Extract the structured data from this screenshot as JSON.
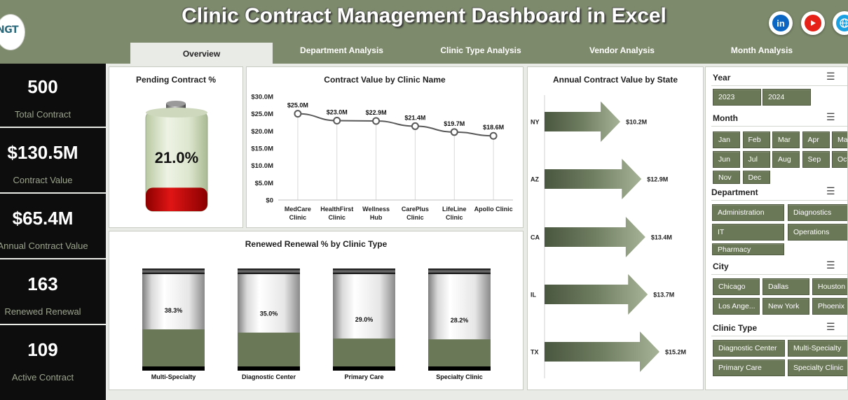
{
  "header": {
    "title": "Clinic Contract Management Dashboard in Excel",
    "logo_text": "NGT",
    "social_icons": [
      "linkedin-icon",
      "youtube-icon",
      "globe-icon"
    ]
  },
  "tabs": [
    {
      "label": "Overview",
      "active": true
    },
    {
      "label": "Department Analysis"
    },
    {
      "label": "Clinic Type Analysis"
    },
    {
      "label": "Vendor Analysis"
    },
    {
      "label": "Month Analysis"
    }
  ],
  "kpis": [
    {
      "value": "500",
      "label": "Total Contract"
    },
    {
      "value": "$130.5M",
      "label": "Contract Value"
    },
    {
      "value": "$65.4M",
      "label": "Annual Contract Value"
    },
    {
      "value": "163",
      "label": "Renewed Renewal"
    },
    {
      "value": "109",
      "label": "Active Contract"
    }
  ],
  "pending": {
    "title": "Pending Contract %",
    "value_label": "21.0%",
    "fraction": 0.21
  },
  "colors": {
    "header_bg": "#7d8a6b",
    "accent_green": "#6b7858",
    "battery_fill": "#c00000",
    "kpi_bg": "#0d0d0d",
    "kpi_label": "#9ba48d"
  },
  "chart_data": [
    {
      "type": "line",
      "title": "Contract Value by Clinic Name",
      "categories": [
        "MedCare Clinic",
        "HealthFirst Clinic",
        "Wellness Hub",
        "CarePlus Clinic",
        "LifeLine Clinic",
        "Apollo Clinic"
      ],
      "values": [
        25.0,
        23.0,
        22.9,
        21.4,
        19.7,
        18.6
      ],
      "data_labels": [
        "$25.0M",
        "$23.0M",
        "$22.9M",
        "$21.4M",
        "$19.7M",
        "$18.6M"
      ],
      "yticks": [
        "$0",
        "$5.0M",
        "$10.0M",
        "$15.0M",
        "$20.0M",
        "$25.0M",
        "$30.0M"
      ],
      "ylim": [
        0,
        30
      ]
    },
    {
      "type": "bar",
      "title": "Renewed Renewal % by Clinic Type",
      "categories": [
        "Multi-Specialty",
        "Diagnostic Center",
        "Primary Care",
        "Specialty Clinic"
      ],
      "values": [
        38.3,
        35.0,
        29.0,
        28.2
      ],
      "data_labels": [
        "38.3%",
        "35.0%",
        "29.0%",
        "28.2%"
      ],
      "ylim": [
        0,
        100
      ]
    },
    {
      "type": "bar",
      "title": "Annual Contract Value by State",
      "categories": [
        "NY",
        "AZ",
        "CA",
        "IL",
        "TX"
      ],
      "values": [
        10.2,
        12.9,
        13.4,
        13.7,
        15.2
      ],
      "data_labels": [
        "$10.2M",
        "$12.9M",
        "$13.4M",
        "$13.7M",
        "$15.2M"
      ]
    }
  ],
  "slicers": {
    "year": {
      "label": "Year",
      "items": [
        "2023",
        "2024"
      ]
    },
    "month": {
      "label": "Month",
      "items": [
        "Jan",
        "Feb",
        "Mar",
        "Apr",
        "May",
        "Jun",
        "Jul",
        "Aug",
        "Sep",
        "Oct",
        "Nov",
        "Dec"
      ]
    },
    "department": {
      "label": "Department",
      "items": [
        "Administration",
        "Diagnostics",
        "IT",
        "Operations",
        "Pharmacy"
      ]
    },
    "city": {
      "label": "City",
      "items": [
        "Chicago",
        "Dallas",
        "Houston",
        "Los Ange...",
        "New York",
        "Phoenix"
      ]
    },
    "clinic_type": {
      "label": "Clinic Type",
      "items": [
        "Diagnostic Center",
        "Multi-Specialty",
        "Primary Care",
        "Specialty Clinic"
      ]
    }
  }
}
